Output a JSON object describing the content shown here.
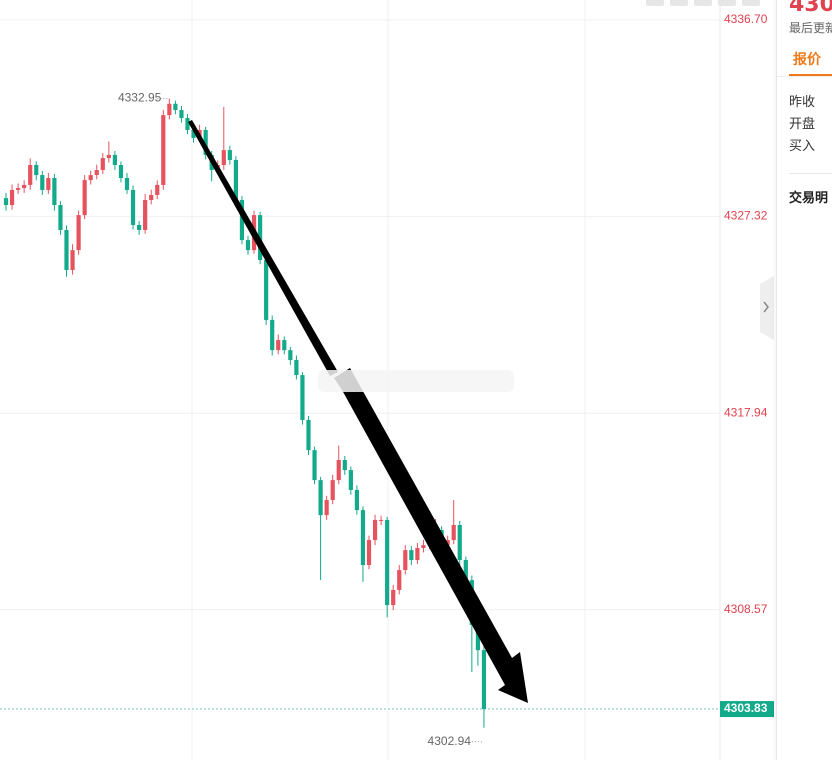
{
  "chart_data": {
    "type": "candlestick",
    "ylim": [
      4301.4,
      4337.65
    ],
    "yticks": [
      4308.57,
      4317.94,
      4327.32,
      {
        "value": 4336.7,
        "label": "4336.70"
      }
    ],
    "grid": true,
    "up_color": "#e5535f",
    "down_color": "#13a98b",
    "open": [
      4328.2,
      4327.87,
      4328.59,
      4328.68,
      4328.83,
      4329.78,
      4329.3,
      4328.59,
      4329.16,
      4327.87,
      4326.68,
      4324.77,
      4325.72,
      4327.39,
      4329.06,
      4329.3,
      4329.54,
      4330.11,
      4330.26,
      4329.78,
      4329.16,
      4328.59,
      4326.92,
      4326.68,
      4328.11,
      4328.35,
      4328.83,
      4332.16,
      4332.7,
      4332.4,
      4332.02,
      4331.45,
      4331.07,
      4331.45,
      4330.26,
      4329.54,
      4329.78,
      4330.49,
      4330.02,
      4328.11,
      4326.2,
      4325.72,
      4327.39,
      4325.25,
      4322.39,
      4320.95,
      4321.43,
      4320.95,
      4320.48,
      4319.76,
      4317.62,
      4316.18,
      4314.75,
      4313.08,
      4313.8,
      4314.75,
      4315.71,
      4315.23,
      4314.28,
      4313.32,
      4310.7,
      4311.89,
      4312.85,
      4312.85,
      4308.79,
      4309.51,
      4310.46,
      4311.41,
      4310.94,
      4311.51,
      4311.65,
      4311.89,
      4312.37,
      4311.65,
      4311.89,
      4312.61,
      4310.94,
      4309.98,
      4307.84,
      4306.64
    ],
    "close": [
      4327.87,
      4328.59,
      4328.68,
      4328.83,
      4329.78,
      4329.3,
      4328.59,
      4329.16,
      4327.87,
      4326.68,
      4324.77,
      4325.72,
      4327.39,
      4329.06,
      4329.3,
      4329.54,
      4330.11,
      4330.26,
      4329.78,
      4329.16,
      4328.59,
      4326.92,
      4326.68,
      4328.11,
      4328.35,
      4328.83,
      4332.16,
      4332.7,
      4332.4,
      4332.02,
      4331.45,
      4331.07,
      4331.45,
      4330.26,
      4329.54,
      4329.78,
      4330.49,
      4330.02,
      4328.11,
      4326.2,
      4325.72,
      4327.39,
      4325.25,
      4322.39,
      4320.95,
      4321.43,
      4320.95,
      4320.48,
      4319.76,
      4317.62,
      4316.18,
      4314.75,
      4313.08,
      4313.8,
      4314.75,
      4315.71,
      4315.23,
      4314.28,
      4313.32,
      4310.7,
      4311.89,
      4312.85,
      4312.85,
      4308.79,
      4309.51,
      4310.46,
      4311.41,
      4310.94,
      4311.51,
      4311.65,
      4311.89,
      4312.37,
      4311.65,
      4311.89,
      4312.61,
      4310.94,
      4309.98,
      4307.84,
      4306.64,
      4303.83
    ],
    "high": [
      4328.45,
      4328.85,
      4328.9,
      4329.05,
      4330.1,
      4329.95,
      4329.5,
      4329.4,
      4329.35,
      4328.05,
      4326.9,
      4326.0,
      4327.6,
      4329.3,
      4329.5,
      4329.8,
      4330.35,
      4330.9,
      4330.45,
      4329.95,
      4329.4,
      4328.8,
      4327.1,
      4328.4,
      4328.6,
      4329.05,
      4332.4,
      4332.95,
      4332.85,
      4332.6,
      4332.2,
      4331.65,
      4331.7,
      4331.6,
      4330.45,
      4330.0,
      4332.55,
      4330.7,
      4330.2,
      4328.3,
      4326.4,
      4327.6,
      4327.55,
      4325.45,
      4322.6,
      4321.7,
      4321.6,
      4321.1,
      4320.7,
      4319.9,
      4317.8,
      4316.35,
      4314.9,
      4314.0,
      4315.0,
      4316.4,
      4315.9,
      4315.4,
      4314.5,
      4313.5,
      4312.1,
      4313.1,
      4313.05,
      4313.0,
      4309.75,
      4310.7,
      4311.65,
      4311.6,
      4311.75,
      4311.9,
      4312.1,
      4312.9,
      4312.55,
      4312.1,
      4313.8,
      4312.8,
      4311.1,
      4310.2,
      4308.05,
      4306.85
    ],
    "low": [
      4327.6,
      4327.65,
      4328.4,
      4328.45,
      4328.6,
      4329.05,
      4328.35,
      4328.4,
      4327.6,
      4326.45,
      4324.45,
      4324.55,
      4325.5,
      4327.2,
      4328.85,
      4329.1,
      4329.35,
      4329.9,
      4329.55,
      4328.95,
      4328.4,
      4326.7,
      4326.45,
      4326.5,
      4327.9,
      4328.15,
      4328.6,
      4331.95,
      4332.2,
      4331.8,
      4331.25,
      4330.85,
      4330.9,
      4330.05,
      4329.0,
      4329.35,
      4329.55,
      4329.8,
      4327.9,
      4326.0,
      4325.5,
      4325.55,
      4325.05,
      4322.15,
      4320.7,
      4320.75,
      4320.75,
      4320.25,
      4319.55,
      4317.4,
      4315.95,
      4314.55,
      4309.98,
      4312.85,
      4313.6,
      4314.55,
      4315.0,
      4314.05,
      4313.1,
      4309.9,
      4310.5,
      4311.65,
      4312.6,
      4308.2,
      4308.55,
      4309.3,
      4310.25,
      4310.7,
      4310.75,
      4311.3,
      4311.45,
      4311.7,
      4311.45,
      4311.45,
      4311.7,
      4310.7,
      4309.75,
      4305.6,
      4305.9,
      4302.94
    ]
  },
  "panel": {
    "price": "430",
    "updated": "最后更新",
    "tab": "报价",
    "fields": [
      "昨收",
      "开盘",
      "买入"
    ],
    "section": "交易明"
  }
}
